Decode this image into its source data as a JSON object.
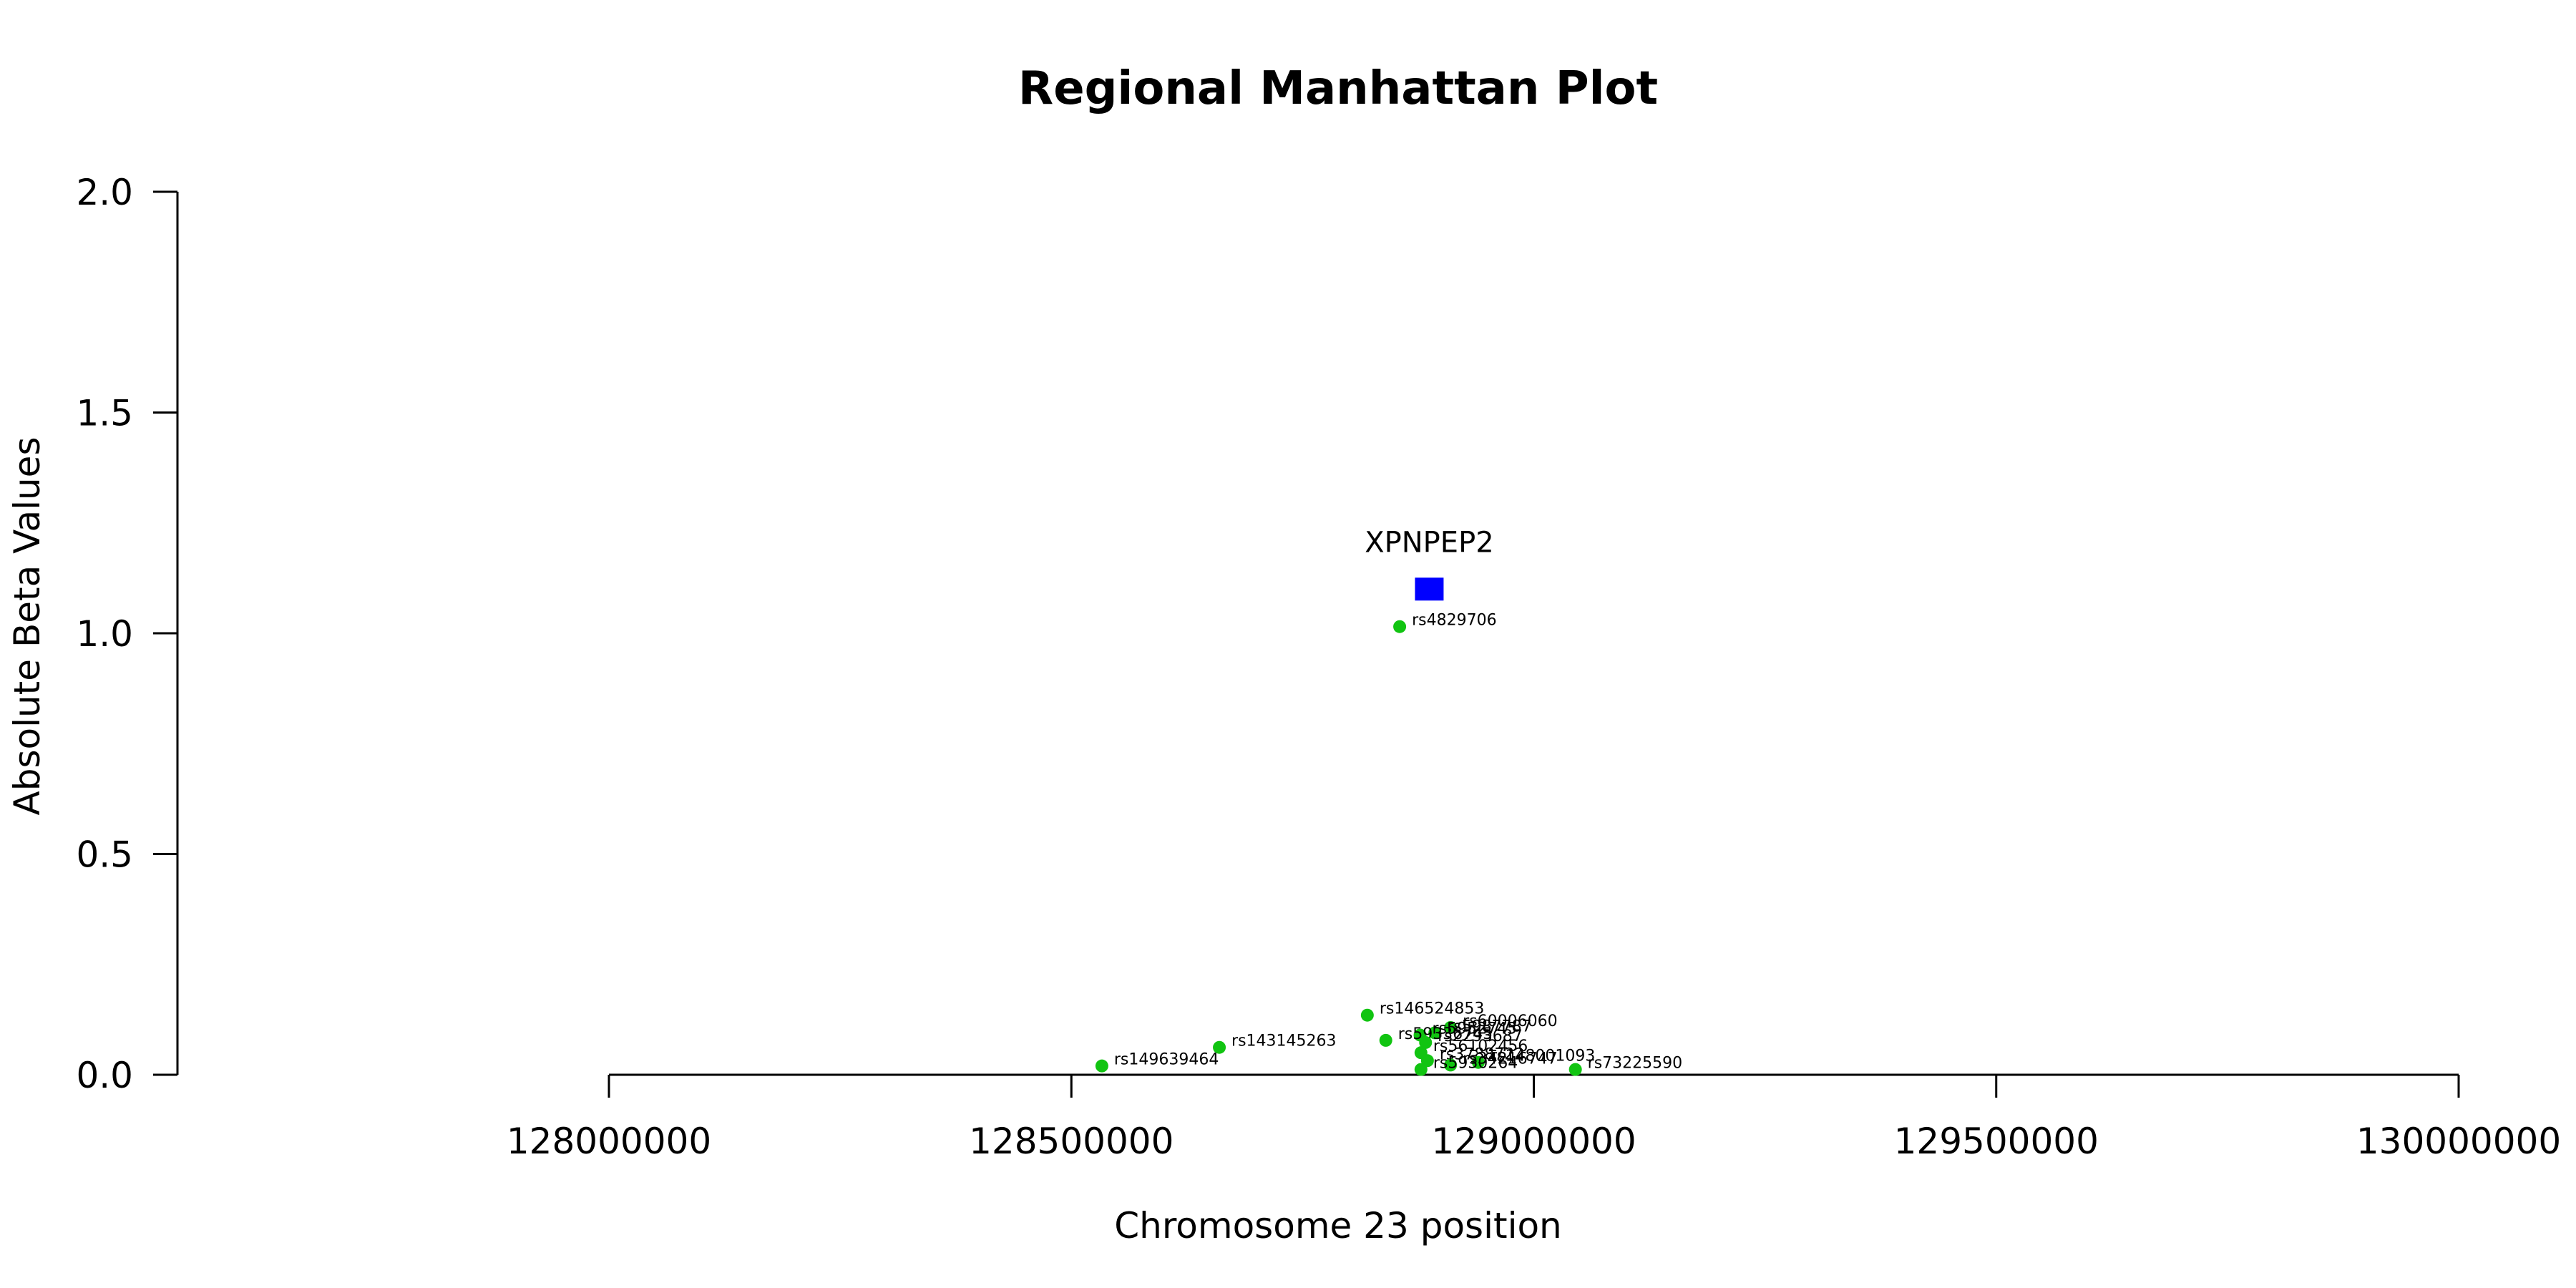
{
  "chart_data": {
    "type": "scatter",
    "title": "Regional Manhattan Plot",
    "xlabel": "Chromosome 23 position",
    "ylabel": "Absolute Beta Values",
    "xlim": [
      128000000,
      130000000
    ],
    "ylim": [
      0,
      2
    ],
    "x_ticks": [
      128000000,
      128500000,
      129000000,
      129500000,
      130000000
    ],
    "x_tick_labels": [
      "128000000",
      "128500000",
      "129000000",
      "129500000",
      "130000000"
    ],
    "y_ticks": [
      0,
      0.5,
      1,
      1.5,
      2
    ],
    "y_tick_labels": [
      "0.0",
      "0.5",
      "1.0",
      "1.5",
      "2.0"
    ],
    "grid": false,
    "snp_color": "#11c411",
    "gene_color": "#0000ff",
    "gene": {
      "name": "XPNPEP2",
      "x": 128887000,
      "y": 1.1
    },
    "series": [
      {
        "points": [
          {
            "id": "rs4829706",
            "x": 128855000,
            "y": 1.015
          },
          {
            "id": "rs146524853",
            "x": 128820000,
            "y": 0.135
          },
          {
            "id": "rs60006060",
            "x": 128910000,
            "y": 0.107
          },
          {
            "id": "rs5987787",
            "x": 128893000,
            "y": 0.095
          },
          {
            "id": "rs5952745",
            "x": 128877000,
            "y": 0.09
          },
          {
            "id": "rs59336745",
            "x": 128840000,
            "y": 0.078
          },
          {
            "id": "rs2293687",
            "x": 128883000,
            "y": 0.073
          },
          {
            "id": "rs56102456",
            "x": 128878000,
            "y": 0.05
          },
          {
            "id": "rs3788722",
            "x": 128885000,
            "y": 0.032
          },
          {
            "id": "rs148001093",
            "x": 128940000,
            "y": 0.028
          },
          {
            "id": "rs34216747",
            "x": 128910000,
            "y": 0.022
          },
          {
            "id": "rs73225590",
            "x": 129045000,
            "y": 0.012
          },
          {
            "id": "rs5930264",
            "x": 128878000,
            "y": 0.012
          },
          {
            "id": "rs143145263",
            "x": 128660000,
            "y": 0.062
          },
          {
            "id": "rs149639464",
            "x": 128533000,
            "y": 0.02
          }
        ]
      }
    ]
  }
}
